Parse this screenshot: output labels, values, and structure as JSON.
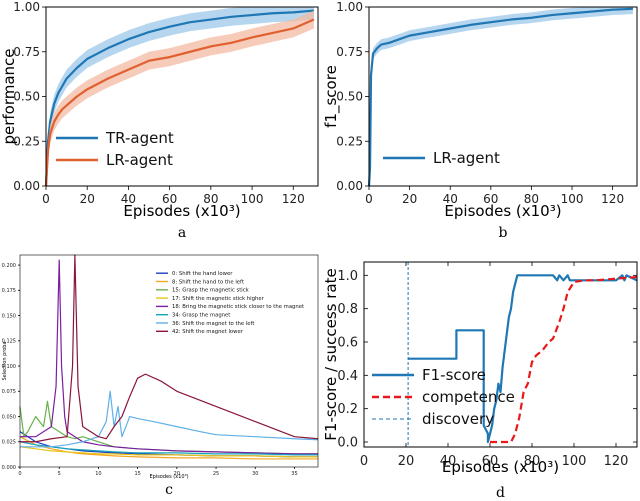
{
  "chart_data": [
    {
      "id": "a",
      "type": "line",
      "caption": "a",
      "xlabel": "Episodes (x10³)",
      "ylabel": "performance",
      "xlim": [
        0,
        132
      ],
      "ylim": [
        0,
        1.0
      ],
      "xticks": [
        0,
        20,
        40,
        60,
        80,
        100,
        120
      ],
      "yticks": [
        0.0,
        0.25,
        0.5,
        0.75,
        1.0
      ],
      "ytick_labels": [
        "0.00",
        "0.25",
        "0.50",
        "0.75",
        "1.00"
      ],
      "legend_position": "lower-left",
      "series": [
        {
          "name": "TR-agent",
          "color": "#1f77b4",
          "band": "#9ec8ea",
          "x": [
            0,
            1,
            2,
            4,
            6,
            8,
            10,
            15,
            20,
            25,
            30,
            40,
            50,
            60,
            70,
            80,
            90,
            100,
            110,
            120,
            130
          ],
          "y": [
            0.0,
            0.25,
            0.36,
            0.46,
            0.52,
            0.56,
            0.6,
            0.66,
            0.71,
            0.74,
            0.77,
            0.82,
            0.86,
            0.89,
            0.915,
            0.93,
            0.945,
            0.955,
            0.965,
            0.97,
            0.98
          ],
          "band_halfwidth": 0.05
        },
        {
          "name": "LR-agent",
          "color": "#e06030",
          "band": "#f3b9a1",
          "x": [
            0,
            1,
            2,
            4,
            6,
            8,
            10,
            15,
            20,
            25,
            30,
            40,
            50,
            60,
            70,
            80,
            90,
            100,
            110,
            120,
            126,
            130
          ],
          "y": [
            0.0,
            0.2,
            0.29,
            0.36,
            0.4,
            0.43,
            0.45,
            0.5,
            0.54,
            0.57,
            0.6,
            0.65,
            0.7,
            0.72,
            0.75,
            0.78,
            0.8,
            0.83,
            0.855,
            0.88,
            0.91,
            0.93
          ],
          "band_halfwidth": 0.05
        }
      ]
    },
    {
      "id": "b",
      "type": "line",
      "caption": "b",
      "xlabel": "Episodes (x10³)",
      "ylabel": "f1_score",
      "xlim": [
        0,
        132
      ],
      "ylim": [
        0,
        1.0
      ],
      "xticks": [
        0,
        20,
        40,
        60,
        80,
        100,
        120
      ],
      "yticks": [
        0.0,
        0.25,
        0.5,
        0.75,
        1.0
      ],
      "ytick_labels": [
        "0.00",
        "0.25",
        "0.50",
        "0.75",
        "1.00"
      ],
      "legend_position": "lower-center",
      "series": [
        {
          "name": "LR-agent",
          "color": "#1f77b4",
          "band": "#9ec8ea",
          "x": [
            0,
            0.5,
            1,
            2,
            4,
            6,
            10,
            15,
            20,
            30,
            40,
            50,
            60,
            70,
            80,
            90,
            100,
            110,
            120,
            130
          ],
          "y": [
            0.0,
            0.1,
            0.62,
            0.74,
            0.77,
            0.79,
            0.8,
            0.82,
            0.84,
            0.86,
            0.88,
            0.9,
            0.915,
            0.93,
            0.94,
            0.955,
            0.965,
            0.975,
            0.985,
            0.99
          ],
          "band_halfwidth": 0.03
        }
      ]
    },
    {
      "id": "c",
      "type": "line",
      "caption": "c",
      "xlabel": "Episodes (x10³)",
      "ylabel": "Selection proba",
      "xlim": [
        0,
        38
      ],
      "ylim": [
        0,
        0.21
      ],
      "xticks": [
        0,
        5,
        10,
        15,
        20,
        25,
        30,
        35
      ],
      "yticks": [
        0.0,
        0.025,
        0.05,
        0.075,
        0.1,
        0.125,
        0.15,
        0.175,
        0.2
      ],
      "ytick_labels": [
        "0.000",
        "0.025",
        "0.050",
        "0.075",
        "0.100",
        "0.125",
        "0.150",
        "0.175",
        "0.200"
      ],
      "legend_position": "top-right",
      "series": [
        {
          "name": "0:  Shift the hand lower",
          "color": "#1f3fbf",
          "x": [
            0,
            2,
            4,
            6,
            8,
            10,
            12,
            15,
            20,
            25,
            30,
            35,
            38
          ],
          "y": [
            0.035,
            0.025,
            0.02,
            0.018,
            0.016,
            0.015,
            0.014,
            0.013,
            0.012,
            0.011,
            0.011,
            0.01,
            0.01
          ]
        },
        {
          "name": "8:  Shift the hand to the left",
          "color": "#f5a623",
          "x": [
            0,
            2,
            4,
            6,
            8,
            10,
            12,
            15,
            20,
            25,
            30,
            35,
            38
          ],
          "y": [
            0.03,
            0.022,
            0.018,
            0.015,
            0.013,
            0.012,
            0.011,
            0.01,
            0.009,
            0.009,
            0.008,
            0.008,
            0.008
          ]
        },
        {
          "name": "15:  Grasp the magnetic stick",
          "color": "#6ab04c",
          "x": [
            0,
            0.5,
            1,
            2,
            3,
            3.5,
            4,
            5,
            6,
            7,
            8,
            10,
            12,
            15,
            20,
            25,
            30,
            35,
            38
          ],
          "y": [
            0.06,
            0.03,
            0.035,
            0.05,
            0.04,
            0.065,
            0.04,
            0.035,
            0.03,
            0.028,
            0.03,
            0.025,
            0.02,
            0.018,
            0.016,
            0.015,
            0.014,
            0.013,
            0.013
          ]
        },
        {
          "name": "17:  Shift the magnetic stick higher",
          "color": "#e8c41a",
          "x": [
            0,
            2,
            4,
            6,
            8,
            10,
            12,
            15,
            20,
            25,
            30,
            35,
            38
          ],
          "y": [
            0.02,
            0.018,
            0.016,
            0.015,
            0.014,
            0.013,
            0.013,
            0.012,
            0.012,
            0.011,
            0.011,
            0.01,
            0.01
          ]
        },
        {
          "name": "18:  Bring the magnetic stick closer to the magnet",
          "color": "#7a1fa2",
          "x": [
            0,
            2,
            4,
            4.6,
            5,
            5.3,
            5.7,
            6,
            7,
            8,
            10,
            12,
            15,
            20,
            25,
            30,
            35,
            38
          ],
          "y": [
            0.03,
            0.03,
            0.04,
            0.08,
            0.205,
            0.1,
            0.05,
            0.035,
            0.03,
            0.025,
            0.022,
            0.02,
            0.018,
            0.016,
            0.015,
            0.014,
            0.013,
            0.013
          ]
        },
        {
          "name": "34:  Grasp the magnet",
          "color": "#17a2b8",
          "x": [
            0,
            2,
            4,
            6,
            8,
            10,
            12,
            15,
            20,
            25,
            30,
            35,
            38
          ],
          "y": [
            0.025,
            0.022,
            0.02,
            0.018,
            0.017,
            0.016,
            0.015,
            0.014,
            0.014,
            0.013,
            0.013,
            0.012,
            0.012
          ]
        },
        {
          "name": "36:  Shift the magnet to the left",
          "color": "#5fb0e8",
          "x": [
            0,
            2,
            4,
            6,
            8,
            10,
            11,
            11.5,
            12,
            12.5,
            13,
            14,
            15,
            17,
            20,
            23,
            25,
            30,
            35,
            38
          ],
          "y": [
            0.02,
            0.02,
            0.02,
            0.022,
            0.025,
            0.03,
            0.045,
            0.075,
            0.04,
            0.06,
            0.03,
            0.05,
            0.048,
            0.045,
            0.04,
            0.035,
            0.032,
            0.03,
            0.028,
            0.027
          ]
        },
        {
          "name": "42:  Shift the magnet lower",
          "color": "#8b1538",
          "x": [
            0,
            2,
            4,
            6,
            6.7,
            7,
            7.4,
            8,
            9,
            10,
            11,
            12,
            13,
            14,
            15,
            16,
            18,
            20,
            25,
            30,
            35,
            38
          ],
          "y": [
            0.025,
            0.025,
            0.028,
            0.03,
            0.1,
            0.21,
            0.08,
            0.04,
            0.035,
            0.03,
            0.028,
            0.04,
            0.05,
            0.07,
            0.088,
            0.092,
            0.085,
            0.075,
            0.06,
            0.045,
            0.03,
            0.028
          ]
        }
      ]
    },
    {
      "id": "d",
      "type": "line",
      "caption": "d",
      "xlabel": "Episodes (x10³)",
      "ylabel": "F1-score / success rate",
      "xlim": [
        0,
        130
      ],
      "ylim": [
        -0.03,
        1.08
      ],
      "xticks": [
        0,
        20,
        40,
        60,
        80,
        100,
        120
      ],
      "yticks": [
        0.0,
        0.2,
        0.4,
        0.6,
        0.8,
        1.0
      ],
      "ytick_labels": [
        "0.0",
        "0.2",
        "0.4",
        "0.6",
        "0.8",
        "1.0"
      ],
      "legend_position": "lower-left",
      "series": [
        {
          "name": "F1-score",
          "color": "#1f77b4",
          "style": "solid",
          "x": [
            21,
            44,
            44,
            57,
            57,
            59,
            59,
            60,
            61,
            62,
            63,
            64,
            65,
            66,
            67,
            68,
            69,
            70,
            71,
            72,
            73,
            75,
            90,
            92,
            93,
            95,
            97,
            98,
            100,
            110,
            120,
            123,
            124,
            125,
            130
          ],
          "y": [
            0.5,
            0.5,
            0.67,
            0.67,
            0.1,
            0.05,
            0.0,
            0.05,
            0.1,
            0.2,
            0.25,
            0.35,
            0.3,
            0.45,
            0.55,
            0.65,
            0.75,
            0.8,
            0.9,
            0.95,
            1.0,
            1.0,
            1.0,
            0.97,
            1.0,
            0.97,
            1.0,
            0.97,
            0.97,
            0.97,
            0.97,
            1.0,
            0.97,
            1.0,
            0.97
          ]
        },
        {
          "name": "competence",
          "color": "#e8191b",
          "style": "dashed",
          "x": [
            60,
            65,
            70,
            72,
            74,
            76,
            78,
            80,
            82,
            85,
            88,
            90,
            93,
            95,
            97,
            100,
            105,
            110,
            120,
            130
          ],
          "y": [
            0.0,
            0.0,
            0.0,
            0.05,
            0.15,
            0.3,
            0.35,
            0.48,
            0.52,
            0.55,
            0.6,
            0.62,
            0.72,
            0.8,
            0.9,
            0.96,
            0.97,
            0.97,
            0.98,
            0.99
          ]
        },
        {
          "name": "discovery",
          "color": "#1f77b4",
          "style": "vline",
          "x": [
            21
          ]
        }
      ]
    }
  ]
}
